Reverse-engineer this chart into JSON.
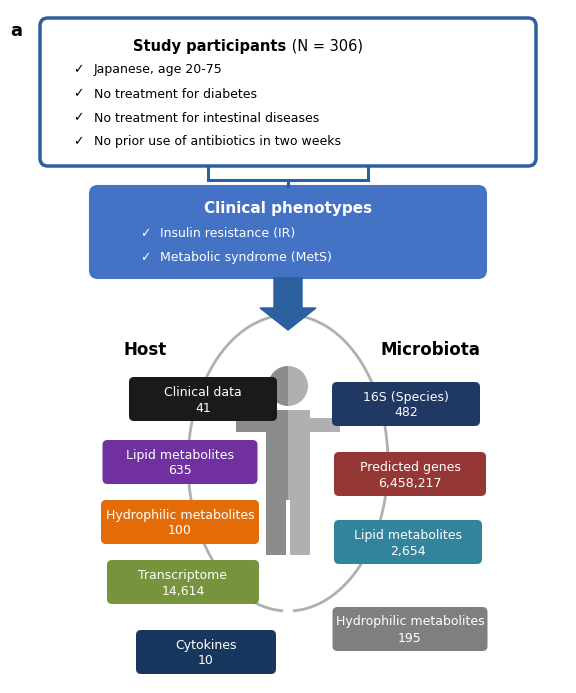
{
  "title_label": "a",
  "study_box": {
    "title": "Study participants",
    "title_suffix": " (N = 306)",
    "bullets": [
      "Japanese, age 20-75",
      "No treatment for diabetes",
      "No treatment for intestinal diseases",
      "No prior use of antibiotics in two weeks"
    ],
    "border_color": "#2c5f9e",
    "bg_color": "#ffffff",
    "text_color": "#000000"
  },
  "clinical_box": {
    "title": "Clinical phenotypes",
    "bullets": [
      "Insulin resistance (IR)",
      "Metabolic syndrome (MetS)"
    ],
    "bg_color": "#4472c4",
    "text_color": "#ffffff"
  },
  "host_label": "Host",
  "microbiota_label": "Microbiota",
  "host_boxes": [
    {
      "label": "Clinical data",
      "value": "41",
      "color": "#1a1a1a"
    },
    {
      "label": "Lipid metabolites",
      "value": "635",
      "color": "#7030a0"
    },
    {
      "label": "Hydrophilic metabolites",
      "value": "100",
      "color": "#e36c09"
    },
    {
      "label": "Transcriptome",
      "value": "14,614",
      "color": "#77933c"
    },
    {
      "label": "Cytokines",
      "value": "10",
      "color": "#17375e"
    }
  ],
  "microbiota_boxes": [
    {
      "label": "16S (Species)",
      "value": "482",
      "color": "#1f3864"
    },
    {
      "label": "Predicted genes",
      "value": "6,458,217",
      "color": "#953735"
    },
    {
      "label": "Lipid metabolites",
      "value": "2,654",
      "color": "#31849b"
    },
    {
      "label": "Hydrophilic metabolites",
      "value": "195",
      "color": "#7f7f7f"
    }
  ],
  "figure_bg": "#ffffff",
  "person_color_left": "#8c8c8c",
  "person_color_right": "#b0b0b0",
  "arc_color": "#b0b0b0",
  "arrow_color": "#2c5f9e",
  "connector_color": "#2c5f9e"
}
